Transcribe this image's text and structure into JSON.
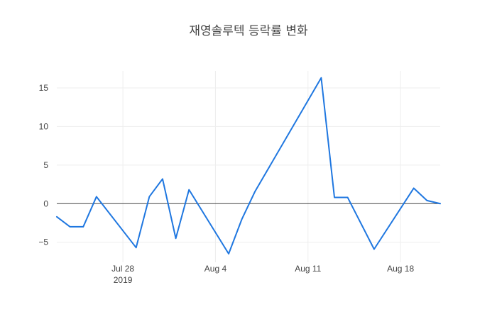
{
  "chart_data": {
    "type": "line",
    "title": "재영솔루텍 등락률 변화",
    "xlabel": "",
    "ylabel": "",
    "x_start": "2019-07-23",
    "x": [
      "2019-07-23",
      "2019-07-24",
      "2019-07-25",
      "2019-07-26",
      "2019-07-29",
      "2019-07-30",
      "2019-07-31",
      "2019-08-01",
      "2019-08-02",
      "2019-08-05",
      "2019-08-06",
      "2019-08-07",
      "2019-08-12",
      "2019-08-13",
      "2019-08-14",
      "2019-08-16",
      "2019-08-19",
      "2019-08-20",
      "2019-08-21"
    ],
    "series": [
      {
        "name": "",
        "color": "#1f77e0",
        "values": [
          -1.7,
          -3.0,
          -3.0,
          0.9,
          -5.7,
          0.9,
          3.2,
          -4.5,
          1.8,
          -6.5,
          -2.0,
          1.6,
          16.3,
          0.8,
          0.8,
          -5.9,
          2.0,
          0.4,
          0.0
        ]
      }
    ],
    "ylim": [
      -7.6,
      17.2
    ],
    "xlim": [
      "2019-07-23",
      "2019-08-21"
    ],
    "yticks": [
      15,
      10,
      5,
      0,
      -5
    ],
    "ytick_labels": [
      "15",
      "10",
      "5",
      "0",
      "−5"
    ],
    "xticks": [
      {
        "date": "2019-07-28",
        "label": "Jul 28",
        "sublabel": "2019"
      },
      {
        "date": "2019-08-04",
        "label": "Aug 4",
        "sublabel": ""
      },
      {
        "date": "2019-08-11",
        "label": "Aug 11",
        "sublabel": ""
      },
      {
        "date": "2019-08-18",
        "label": "Aug 18",
        "sublabel": ""
      }
    ],
    "grid": true,
    "zero_line": true,
    "colors": {
      "line": "#1f77e0",
      "grid": "#eeeeee",
      "zero": "#444444",
      "text": "#444444"
    }
  }
}
